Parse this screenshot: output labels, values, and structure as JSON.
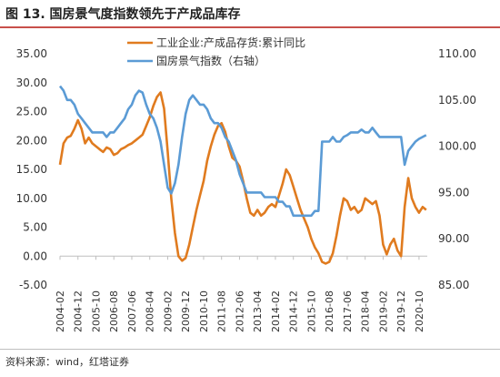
{
  "header": {
    "title": "图 13. 国房景气度指数领先于产成品库存"
  },
  "footer": {
    "source": "资料来源：wind，红塔证券"
  },
  "colors": {
    "inventory": "#e07b1f",
    "index": "#5b9bd5",
    "title_rule": "#c8504b"
  },
  "chart_data": {
    "type": "line",
    "title": "",
    "grid": false,
    "legend_position": "top-center",
    "left_axis": {
      "ylim": [
        -5,
        35
      ],
      "ticks": [
        "35.00",
        "30.00",
        "25.00",
        "20.00",
        "15.00",
        "10.00",
        "5.00",
        "0.00",
        "-5.00"
      ],
      "tick_values": [
        35,
        30,
        25,
        20,
        15,
        10,
        5,
        0,
        -5
      ]
    },
    "right_axis": {
      "ylim": [
        85,
        110
      ],
      "ticks": [
        "110.00",
        "105.00",
        "100.00",
        "95.00",
        "90.00",
        "85.00"
      ],
      "tick_values": [
        110,
        105,
        100,
        95,
        90,
        85
      ]
    },
    "x_ticks": [
      "2004-02",
      "2004-12",
      "2005-10",
      "2006-08",
      "2007-06",
      "2008-04",
      "2009-02",
      "2009-12",
      "2010-10",
      "2011-08",
      "2012-06",
      "2013-04",
      "2014-02",
      "2014-12",
      "2015-10",
      "2016-08",
      "2017-06",
      "2018-04",
      "2019-02",
      "2019-12",
      "2020-10"
    ],
    "series": [
      {
        "name": "工业企业:产成品存货:累计同比",
        "axis": "left",
        "color": "#e07b1f",
        "points": [
          [
            "2004-02",
            15.8
          ],
          [
            "2004-04",
            19.5
          ],
          [
            "2004-06",
            20.5
          ],
          [
            "2004-08",
            20.8
          ],
          [
            "2004-10",
            22.0
          ],
          [
            "2004-12",
            23.5
          ],
          [
            "2005-02",
            22.0
          ],
          [
            "2005-04",
            19.5
          ],
          [
            "2005-06",
            20.5
          ],
          [
            "2005-08",
            19.5
          ],
          [
            "2005-10",
            19.0
          ],
          [
            "2005-12",
            18.5
          ],
          [
            "2006-02",
            18.0
          ],
          [
            "2006-04",
            18.8
          ],
          [
            "2006-06",
            18.5
          ],
          [
            "2006-08",
            17.5
          ],
          [
            "2006-10",
            17.8
          ],
          [
            "2006-12",
            18.5
          ],
          [
            "2007-02",
            18.8
          ],
          [
            "2007-04",
            19.2
          ],
          [
            "2007-06",
            19.5
          ],
          [
            "2007-08",
            20.0
          ],
          [
            "2007-10",
            20.5
          ],
          [
            "2007-12",
            21.0
          ],
          [
            "2008-02",
            22.5
          ],
          [
            "2008-04",
            24.0
          ],
          [
            "2008-06",
            26.0
          ],
          [
            "2008-08",
            27.5
          ],
          [
            "2008-10",
            28.3
          ],
          [
            "2008-12",
            25.5
          ],
          [
            "2009-02",
            18.0
          ],
          [
            "2009-04",
            10.0
          ],
          [
            "2009-06",
            4.0
          ],
          [
            "2009-08",
            0.0
          ],
          [
            "2009-10",
            -0.8
          ],
          [
            "2009-12",
            -0.3
          ],
          [
            "2010-02",
            2.0
          ],
          [
            "2010-04",
            5.0
          ],
          [
            "2010-06",
            8.0
          ],
          [
            "2010-08",
            10.5
          ],
          [
            "2010-10",
            13.0
          ],
          [
            "2010-12",
            16.5
          ],
          [
            "2011-02",
            19.0
          ],
          [
            "2011-04",
            21.0
          ],
          [
            "2011-06",
            22.5
          ],
          [
            "2011-08",
            23.0
          ],
          [
            "2011-10",
            21.5
          ],
          [
            "2011-12",
            19.0
          ],
          [
            "2012-02",
            17.0
          ],
          [
            "2012-04",
            16.5
          ],
          [
            "2012-06",
            15.5
          ],
          [
            "2012-08",
            13.0
          ],
          [
            "2012-10",
            10.0
          ],
          [
            "2012-12",
            7.5
          ],
          [
            "2013-02",
            7.0
          ],
          [
            "2013-04",
            8.0
          ],
          [
            "2013-06",
            7.0
          ],
          [
            "2013-08",
            7.5
          ],
          [
            "2013-10",
            8.5
          ],
          [
            "2013-12",
            9.0
          ],
          [
            "2014-02",
            8.5
          ],
          [
            "2014-04",
            10.5
          ],
          [
            "2014-06",
            12.5
          ],
          [
            "2014-08",
            15.0
          ],
          [
            "2014-10",
            14.0
          ],
          [
            "2014-12",
            12.0
          ],
          [
            "2015-02",
            10.0
          ],
          [
            "2015-04",
            8.0
          ],
          [
            "2015-06",
            6.5
          ],
          [
            "2015-08",
            5.0
          ],
          [
            "2015-10",
            3.0
          ],
          [
            "2015-12",
            1.5
          ],
          [
            "2016-02",
            0.5
          ],
          [
            "2016-04",
            -1.0
          ],
          [
            "2016-06",
            -1.3
          ],
          [
            "2016-08",
            -1.0
          ],
          [
            "2016-10",
            0.5
          ],
          [
            "2016-12",
            3.5
          ],
          [
            "2017-02",
            7.0
          ],
          [
            "2017-04",
            10.0
          ],
          [
            "2017-06",
            9.5
          ],
          [
            "2017-08",
            8.0
          ],
          [
            "2017-10",
            8.5
          ],
          [
            "2017-12",
            7.5
          ],
          [
            "2018-02",
            8.0
          ],
          [
            "2018-04",
            10.0
          ],
          [
            "2018-06",
            9.5
          ],
          [
            "2018-08",
            9.0
          ],
          [
            "2018-10",
            9.5
          ],
          [
            "2018-12",
            7.0
          ],
          [
            "2019-02",
            2.0
          ],
          [
            "2019-04",
            0.3
          ],
          [
            "2019-06",
            2.0
          ],
          [
            "2019-08",
            3.0
          ],
          [
            "2019-10",
            1.0
          ],
          [
            "2019-12",
            0.0
          ],
          [
            "2020-02",
            8.5
          ],
          [
            "2020-04",
            13.5
          ],
          [
            "2020-06",
            10.0
          ],
          [
            "2020-08",
            8.5
          ],
          [
            "2020-10",
            7.5
          ],
          [
            "2020-12",
            8.5
          ],
          [
            "2021-02",
            8.0
          ]
        ]
      },
      {
        "name": "国房景气指数（右轴）",
        "axis": "right",
        "color": "#5b9bd5",
        "points": [
          [
            "2004-02",
            106.5
          ],
          [
            "2004-04",
            106.0
          ],
          [
            "2004-06",
            105.0
          ],
          [
            "2004-08",
            105.0
          ],
          [
            "2004-10",
            104.5
          ],
          [
            "2004-12",
            103.5
          ],
          [
            "2005-02",
            103.0
          ],
          [
            "2005-04",
            102.5
          ],
          [
            "2005-06",
            102.0
          ],
          [
            "2005-08",
            101.5
          ],
          [
            "2005-10",
            101.5
          ],
          [
            "2005-12",
            101.5
          ],
          [
            "2006-02",
            101.5
          ],
          [
            "2006-04",
            101.0
          ],
          [
            "2006-06",
            101.5
          ],
          [
            "2006-08",
            101.5
          ],
          [
            "2006-10",
            102.0
          ],
          [
            "2006-12",
            102.5
          ],
          [
            "2007-02",
            103.0
          ],
          [
            "2007-04",
            104.0
          ],
          [
            "2007-06",
            104.5
          ],
          [
            "2007-08",
            105.5
          ],
          [
            "2007-10",
            106.0
          ],
          [
            "2007-12",
            105.8
          ],
          [
            "2008-02",
            104.5
          ],
          [
            "2008-04",
            103.5
          ],
          [
            "2008-06",
            103.0
          ],
          [
            "2008-08",
            102.0
          ],
          [
            "2008-10",
            100.5
          ],
          [
            "2008-12",
            98.0
          ],
          [
            "2009-02",
            95.5
          ],
          [
            "2009-04",
            94.9
          ],
          [
            "2009-06",
            96.0
          ],
          [
            "2009-08",
            98.0
          ],
          [
            "2009-10",
            101.0
          ],
          [
            "2009-12",
            103.5
          ],
          [
            "2010-02",
            105.0
          ],
          [
            "2010-04",
            105.5
          ],
          [
            "2010-06",
            105.0
          ],
          [
            "2010-08",
            104.5
          ],
          [
            "2010-10",
            104.5
          ],
          [
            "2010-12",
            104.0
          ],
          [
            "2011-02",
            103.0
          ],
          [
            "2011-04",
            102.5
          ],
          [
            "2011-06",
            102.5
          ],
          [
            "2011-08",
            102.0
          ],
          [
            "2011-10",
            101.0
          ],
          [
            "2011-12",
            100.5
          ],
          [
            "2012-02",
            99.5
          ],
          [
            "2012-04",
            98.5
          ],
          [
            "2012-06",
            97.0
          ],
          [
            "2012-08",
            96.0
          ],
          [
            "2012-10",
            95.0
          ],
          [
            "2012-12",
            95.0
          ],
          [
            "2013-02",
            95.0
          ],
          [
            "2013-04",
            95.0
          ],
          [
            "2013-06",
            95.0
          ],
          [
            "2013-08",
            94.5
          ],
          [
            "2013-10",
            94.5
          ],
          [
            "2013-12",
            94.5
          ],
          [
            "2014-02",
            94.5
          ],
          [
            "2014-04",
            94.0
          ],
          [
            "2014-06",
            94.0
          ],
          [
            "2014-08",
            93.5
          ],
          [
            "2014-10",
            93.5
          ],
          [
            "2014-12",
            92.5
          ],
          [
            "2015-02",
            92.5
          ],
          [
            "2015-04",
            92.5
          ],
          [
            "2015-06",
            92.5
          ],
          [
            "2015-08",
            92.5
          ],
          [
            "2015-10",
            92.5
          ],
          [
            "2015-12",
            93.0
          ],
          [
            "2016-02",
            93.0
          ],
          [
            "2016-04",
            100.5
          ],
          [
            "2016-06",
            100.5
          ],
          [
            "2016-08",
            100.5
          ],
          [
            "2016-10",
            101.0
          ],
          [
            "2016-12",
            100.5
          ],
          [
            "2017-02",
            100.5
          ],
          [
            "2017-04",
            101.0
          ],
          [
            "2017-06",
            101.2
          ],
          [
            "2017-08",
            101.5
          ],
          [
            "2017-10",
            101.5
          ],
          [
            "2017-12",
            101.5
          ],
          [
            "2018-02",
            101.8
          ],
          [
            "2018-04",
            101.5
          ],
          [
            "2018-06",
            101.5
          ],
          [
            "2018-08",
            102.0
          ],
          [
            "2018-10",
            101.5
          ],
          [
            "2018-12",
            101.0
          ],
          [
            "2019-02",
            101.0
          ],
          [
            "2019-04",
            101.0
          ],
          [
            "2019-06",
            101.0
          ],
          [
            "2019-08",
            101.0
          ],
          [
            "2019-10",
            101.0
          ],
          [
            "2019-12",
            101.0
          ],
          [
            "2020-02",
            98.0
          ],
          [
            "2020-04",
            99.5
          ],
          [
            "2020-06",
            100.0
          ],
          [
            "2020-08",
            100.5
          ],
          [
            "2020-10",
            100.8
          ],
          [
            "2020-12",
            101.0
          ],
          [
            "2021-02",
            101.2
          ]
        ]
      }
    ]
  }
}
